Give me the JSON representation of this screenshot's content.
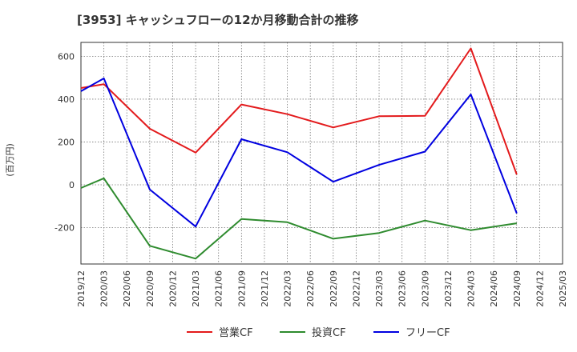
{
  "chart_data": {
    "type": "line",
    "title": "[3953]  キャッシュフローの12か月移動合計の推移",
    "ylabel": "(百万円)",
    "xlabel": "",
    "ylim": [
      -370,
      665
    ],
    "yticks": [
      -200,
      0,
      200,
      400,
      600
    ],
    "grid": true,
    "legend_position": "bottom",
    "categories": [
      "2019/12",
      "2020/03",
      "2020/06",
      "2020/09",
      "2020/12",
      "2021/03",
      "2021/06",
      "2021/09",
      "2021/12",
      "2022/03",
      "2022/06",
      "2022/09",
      "2022/12",
      "2023/03",
      "2023/06",
      "2023/09",
      "2023/12",
      "2024/03",
      "2024/06",
      "2024/09",
      "2024/12",
      "2025/03"
    ],
    "series": [
      {
        "name": "営業CF",
        "color": "#e31a1c",
        "points": [
          [
            0,
            452
          ],
          [
            1,
            470
          ],
          [
            3,
            262
          ],
          [
            5,
            150
          ],
          [
            7,
            375
          ],
          [
            9,
            330
          ],
          [
            11,
            268
          ],
          [
            13,
            320
          ],
          [
            15,
            322
          ],
          [
            17,
            637
          ],
          [
            19,
            48
          ]
        ]
      },
      {
        "name": "投資CF",
        "color": "#2e8b2e",
        "points": [
          [
            0,
            -15
          ],
          [
            1,
            30
          ],
          [
            3,
            -285
          ],
          [
            5,
            -345
          ],
          [
            7,
            -160
          ],
          [
            9,
            -175
          ],
          [
            11,
            -252
          ],
          [
            13,
            -225
          ],
          [
            15,
            -167
          ],
          [
            17,
            -212
          ],
          [
            19,
            -180
          ]
        ]
      },
      {
        "name": "フリーCF",
        "color": "#0000e0",
        "points": [
          [
            0,
            437
          ],
          [
            1,
            497
          ],
          [
            3,
            -22
          ],
          [
            5,
            -195
          ],
          [
            7,
            213
          ],
          [
            9,
            152
          ],
          [
            11,
            14
          ],
          [
            13,
            93
          ],
          [
            15,
            155
          ],
          [
            17,
            422
          ],
          [
            19,
            -133
          ]
        ]
      }
    ]
  }
}
